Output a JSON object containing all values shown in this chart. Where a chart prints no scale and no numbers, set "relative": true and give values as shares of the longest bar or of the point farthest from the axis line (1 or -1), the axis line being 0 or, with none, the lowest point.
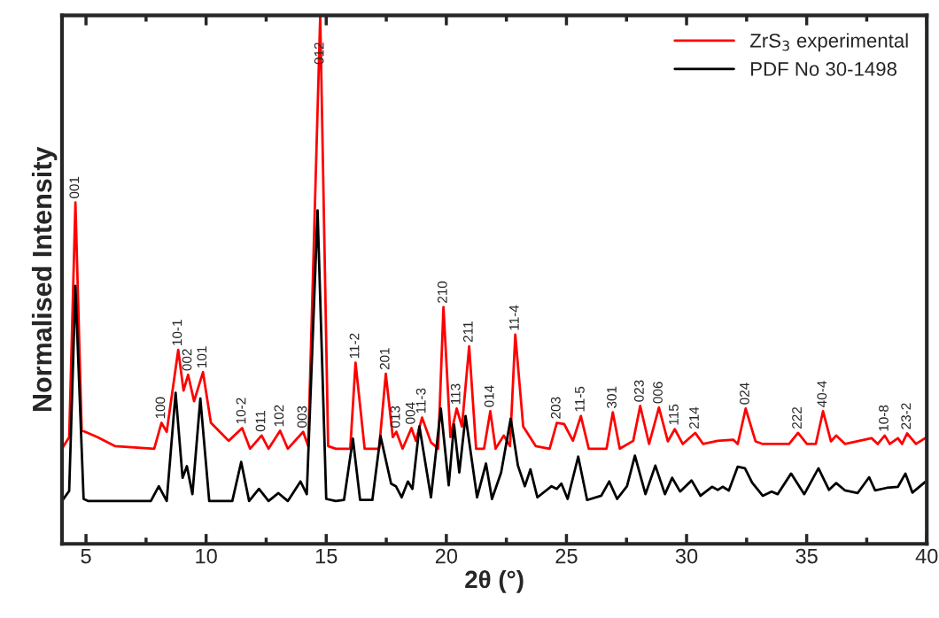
{
  "chart_data": {
    "type": "line",
    "relative": true,
    "xlabel": "2θ (°)",
    "ylabel": "Normalised Intensity",
    "xlim": [
      4,
      40
    ],
    "xticks": [
      5,
      10,
      15,
      20,
      25,
      30,
      35,
      40
    ],
    "grid": false,
    "legend": "top right",
    "marker": "none",
    "line_style": "solid",
    "series": [
      {
        "name": "ZrS$_{3}$ experimental",
        "color": "#ff0000",
        "x": [
          4.0,
          4.3,
          4.56,
          4.82,
          5.48,
          6.2,
          7.84,
          8.14,
          8.36,
          8.84,
          9.06,
          9.25,
          9.5,
          9.87,
          10.2,
          10.94,
          11.5,
          11.83,
          12.31,
          12.6,
          13.08,
          13.4,
          14.04,
          14.25,
          14.75,
          15.08,
          15.4,
          16.0,
          16.22,
          16.6,
          17.2,
          17.48,
          17.77,
          17.92,
          18.18,
          18.55,
          18.73,
          18.99,
          19.36,
          19.66,
          19.88,
          20.17,
          20.43,
          20.65,
          20.95,
          21.24,
          21.57,
          21.83,
          22.05,
          22.39,
          22.65,
          22.87,
          23.2,
          23.72,
          24.3,
          24.6,
          24.9,
          25.27,
          25.6,
          25.93,
          26.67,
          26.93,
          27.22,
          27.78,
          28.07,
          28.44,
          28.85,
          29.22,
          29.51,
          29.84,
          30.36,
          30.69,
          31.3,
          31.95,
          32.13,
          32.46,
          32.87,
          33.17,
          34.27,
          34.64,
          35.01,
          35.38,
          35.68,
          36.01,
          36.23,
          36.6,
          37.7,
          37.96,
          38.25,
          38.46,
          38.8,
          38.97,
          39.18,
          39.55,
          39.93
        ],
        "values": [
          0.18,
          0.202,
          0.646,
          0.215,
          0.202,
          0.185,
          0.18,
          0.229,
          0.212,
          0.367,
          0.29,
          0.32,
          0.27,
          0.325,
          0.229,
          0.195,
          0.219,
          0.18,
          0.205,
          0.18,
          0.214,
          0.18,
          0.212,
          0.185,
          1.0,
          0.185,
          0.18,
          0.18,
          0.343,
          0.18,
          0.18,
          0.322,
          0.202,
          0.212,
          0.18,
          0.219,
          0.195,
          0.239,
          0.192,
          0.18,
          0.448,
          0.202,
          0.256,
          0.222,
          0.374,
          0.18,
          0.18,
          0.251,
          0.18,
          0.205,
          0.185,
          0.396,
          0.222,
          0.185,
          0.18,
          0.229,
          0.227,
          0.195,
          0.242,
          0.18,
          0.18,
          0.249,
          0.18,
          0.195,
          0.261,
          0.189,
          0.258,
          0.194,
          0.217,
          0.189,
          0.21,
          0.189,
          0.195,
          0.197,
          0.189,
          0.256,
          0.194,
          0.189,
          0.189,
          0.21,
          0.189,
          0.189,
          0.251,
          0.194,
          0.205,
          0.189,
          0.2,
          0.189,
          0.205,
          0.189,
          0.2,
          0.189,
          0.209,
          0.189,
          0.2
        ]
      },
      {
        "name": "PDF No 30-1498",
        "color": "#000000",
        "x": [
          4.0,
          4.3,
          4.56,
          4.9,
          5.1,
          7.7,
          8.03,
          8.36,
          8.73,
          9.02,
          9.2,
          9.43,
          9.76,
          10.13,
          11.09,
          11.46,
          11.79,
          12.2,
          12.6,
          13.01,
          13.4,
          13.93,
          14.19,
          14.64,
          15.0,
          15.4,
          15.74,
          16.11,
          16.41,
          16.92,
          17.26,
          17.7,
          17.9,
          18.14,
          18.4,
          18.59,
          18.88,
          19.36,
          19.77,
          20.1,
          20.32,
          20.54,
          20.8,
          21.28,
          21.65,
          21.9,
          22.28,
          22.68,
          22.98,
          23.27,
          23.5,
          23.79,
          24.38,
          24.6,
          24.79,
          25.05,
          25.49,
          25.86,
          26.45,
          26.78,
          27.11,
          27.52,
          27.85,
          28.29,
          28.7,
          29.1,
          29.4,
          29.73,
          30.21,
          30.58,
          31.06,
          31.3,
          31.5,
          31.76,
          32.13,
          32.43,
          32.73,
          33.17,
          33.54,
          33.79,
          34.35,
          34.9,
          35.49,
          35.93,
          36.23,
          36.6,
          37.12,
          37.6,
          37.85,
          38.34,
          38.8,
          39.11,
          39.4,
          39.93
        ],
        "values": [
          0.081,
          0.1,
          0.488,
          0.085,
          0.081,
          0.081,
          0.109,
          0.081,
          0.286,
          0.125,
          0.147,
          0.094,
          0.275,
          0.081,
          0.081,
          0.155,
          0.081,
          0.104,
          0.081,
          0.096,
          0.081,
          0.118,
          0.094,
          0.631,
          0.085,
          0.081,
          0.083,
          0.199,
          0.083,
          0.083,
          0.204,
          0.114,
          0.109,
          0.088,
          0.118,
          0.104,
          0.222,
          0.088,
          0.256,
          0.111,
          0.226,
          0.135,
          0.242,
          0.088,
          0.152,
          0.085,
          0.135,
          0.237,
          0.148,
          0.109,
          0.141,
          0.088,
          0.109,
          0.104,
          0.114,
          0.085,
          0.165,
          0.083,
          0.091,
          0.118,
          0.085,
          0.109,
          0.167,
          0.094,
          0.148,
          0.094,
          0.125,
          0.099,
          0.12,
          0.091,
          0.108,
          0.102,
          0.108,
          0.101,
          0.146,
          0.143,
          0.116,
          0.091,
          0.099,
          0.094,
          0.133,
          0.094,
          0.143,
          0.102,
          0.115,
          0.101,
          0.096,
          0.126,
          0.101,
          0.106,
          0.108,
          0.133,
          0.097,
          0.117
        ]
      }
    ],
    "annotations": [
      {
        "text": "001",
        "x": 4.56,
        "y": 0.646
      },
      {
        "text": "100",
        "x": 8.14,
        "y": 0.229
      },
      {
        "text": "10-1",
        "x": 8.84,
        "y": 0.367
      },
      {
        "text": "002",
        "x": 9.25,
        "y": 0.32
      },
      {
        "text": "101",
        "x": 9.87,
        "y": 0.325
      },
      {
        "text": "10-2",
        "x": 11.5,
        "y": 0.219
      },
      {
        "text": "011",
        "x": 12.31,
        "y": 0.205
      },
      {
        "text": "102",
        "x": 13.08,
        "y": 0.214
      },
      {
        "text": "003",
        "x": 14.04,
        "y": 0.212
      },
      {
        "text": "012",
        "x": 14.75,
        "y": 0.9
      },
      {
        "text": "11-2",
        "x": 16.22,
        "y": 0.343
      },
      {
        "text": "201",
        "x": 17.48,
        "y": 0.322
      },
      {
        "text": "013",
        "x": 17.92,
        "y": 0.212
      },
      {
        "text": "004",
        "x": 18.55,
        "y": 0.219
      },
      {
        "text": "11-3",
        "x": 18.99,
        "y": 0.239
      },
      {
        "text": "210",
        "x": 19.88,
        "y": 0.448
      },
      {
        "text": "113",
        "x": 20.43,
        "y": 0.256
      },
      {
        "text": "211",
        "x": 20.95,
        "y": 0.374
      },
      {
        "text": "014",
        "x": 21.83,
        "y": 0.251
      },
      {
        "text": "11-4",
        "x": 22.87,
        "y": 0.396
      },
      {
        "text": "203",
        "x": 24.6,
        "y": 0.229
      },
      {
        "text": "11-5",
        "x": 25.6,
        "y": 0.242
      },
      {
        "text": "301",
        "x": 26.93,
        "y": 0.249
      },
      {
        "text": "023",
        "x": 28.07,
        "y": 0.261
      },
      {
        "text": "006",
        "x": 28.85,
        "y": 0.258
      },
      {
        "text": "115",
        "x": 29.51,
        "y": 0.217
      },
      {
        "text": "214",
        "x": 30.36,
        "y": 0.21
      },
      {
        "text": "024",
        "x": 32.46,
        "y": 0.256
      },
      {
        "text": "222",
        "x": 34.64,
        "y": 0.21
      },
      {
        "text": "40-4",
        "x": 35.68,
        "y": 0.251
      },
      {
        "text": "10-8",
        "x": 38.25,
        "y": 0.205
      },
      {
        "text": "23-2",
        "x": 39.18,
        "y": 0.209
      }
    ]
  }
}
